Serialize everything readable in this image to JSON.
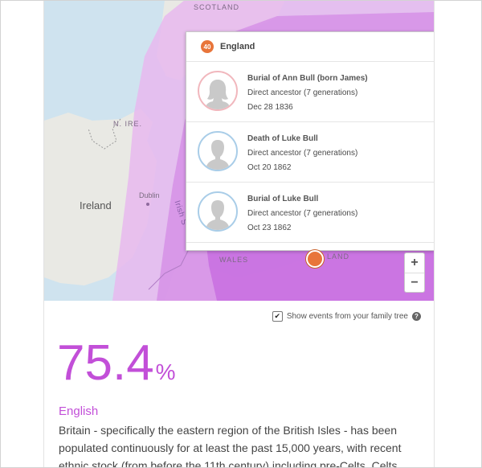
{
  "map": {
    "labels": {
      "scotland": "SCOTLAND",
      "nire": "N. IRE.",
      "ireland": "Ireland",
      "dublin": "Dublin",
      "irish_sea": "Irish S",
      "wales": "WALES",
      "england": "LAND"
    },
    "colors": {
      "sea": "#cfe3ef",
      "land": "#e9e9e4",
      "overlay_outer": "#e7b8ef",
      "overlay_mid": "#d58ee6",
      "overlay_inner": "#c86fe0",
      "pin": "#e8753a"
    },
    "zoom": {
      "in_label": "+",
      "out_label": "−"
    }
  },
  "popup": {
    "count": "40",
    "region": "England",
    "events": [
      {
        "title": "Burial of Ann Bull (born James)",
        "relation": "Direct ancestor (7 generations)",
        "date": "Dec 28 1836",
        "avatar": "female-silhouette-icon"
      },
      {
        "title": "Death of Luke Bull",
        "relation": "Direct ancestor (7 generations)",
        "date": "Oct 20 1862",
        "avatar": "male-silhouette-icon"
      },
      {
        "title": "Burial of Luke Bull",
        "relation": "Direct ancestor (7 generations)",
        "date": "Oct 23 1862",
        "avatar": "male-silhouette-icon"
      }
    ]
  },
  "pin": {
    "count": "40"
  },
  "options": {
    "show_events_label": "Show events from your family tree",
    "show_events_checked": true,
    "help": "?"
  },
  "result": {
    "percent": "75.4",
    "percent_sign": "%",
    "ethnicity": "English",
    "description": "Britain - specifically the eastern region of the British Isles - has been populated continuously for at least the past 15,000 years, with recent ethnic stock (from before the 11th century) including pre-Celts, Celts,",
    "accent_color": "#c24fd8"
  }
}
